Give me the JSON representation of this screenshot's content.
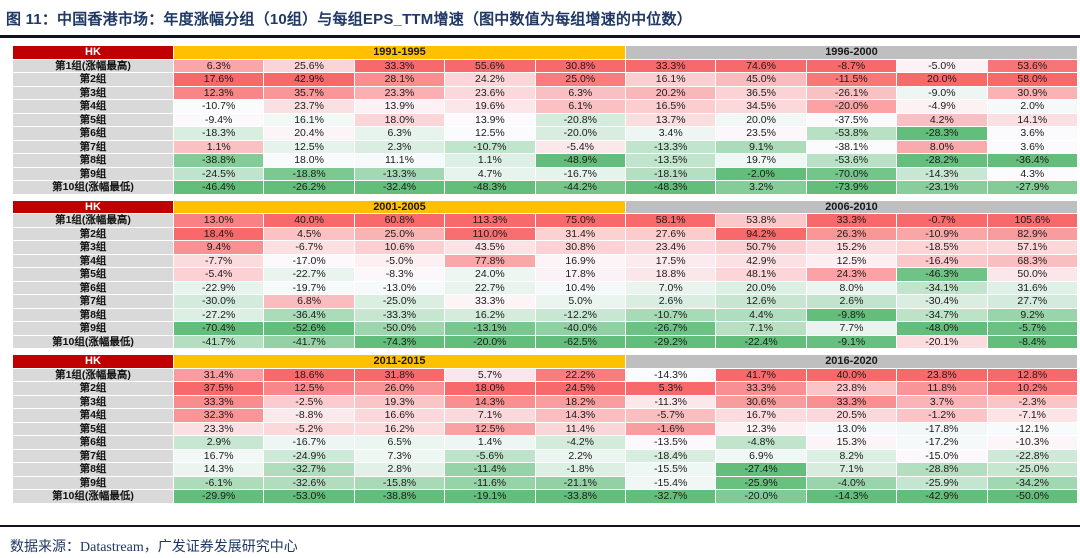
{
  "title": "图 11：中国香港市场：年度涨幅分组（10组）与每组EPS_TTM增速（图中数值为每组增速的中位数）",
  "footer": {
    "source_label": "数据来源：Datastream，广发证券发展研究中心"
  },
  "chart_data": {
    "type": "heatmap",
    "title": "中国香港市场：年度涨幅分组（10组）与每组EPS_TTM增速（中位数）",
    "value_unit": "%",
    "legend_note": "red = column max, white = column median, green = column min (per-column 3-color scale)",
    "color_scale": {
      "high": "#F8696B",
      "mid": "#FCFCFF",
      "low": "#63BE7B"
    },
    "row_labels": [
      "第1组(涨幅最高)",
      "第2组",
      "第3组",
      "第4组",
      "第5组",
      "第6组",
      "第7组",
      "第8组",
      "第9组",
      "第10组(涨幅最低)"
    ],
    "blocks": [
      {
        "market": "HK",
        "period_left": "1991-1995",
        "period_right": "1996-2000",
        "row_labels": [
          "第1组(涨幅最高)",
          "第2组",
          "第3组",
          "第4组",
          "第5组",
          "第6组",
          "第7组",
          "第8组",
          "第9组",
          "第10组(涨幅最低)"
        ],
        "rows": [
          [
            6.3,
            25.6,
            33.3,
            55.6,
            30.8,
            33.3,
            74.6,
            -8.7,
            -5.0,
            53.6
          ],
          [
            17.6,
            42.9,
            28.1,
            24.2,
            25.0,
            16.1,
            45.0,
            -11.5,
            20.0,
            58.0
          ],
          [
            12.3,
            35.7,
            23.3,
            23.6,
            6.3,
            20.2,
            36.5,
            -26.1,
            -9.0,
            30.9
          ],
          [
            -10.7,
            23.7,
            13.9,
            19.6,
            6.1,
            16.5,
            34.5,
            -20.0,
            -4.9,
            2.0
          ],
          [
            -9.4,
            16.1,
            18.0,
            13.9,
            -20.8,
            13.7,
            20.0,
            -37.5,
            4.2,
            14.1
          ],
          [
            -18.3,
            20.4,
            6.3,
            12.5,
            -20.0,
            3.4,
            23.5,
            -53.8,
            -28.3,
            3.6
          ],
          [
            1.1,
            12.5,
            2.3,
            -10.7,
            -5.4,
            -13.3,
            9.1,
            -38.1,
            8.0,
            3.6
          ],
          [
            -38.8,
            18.0,
            11.1,
            1.1,
            -48.9,
            -13.5,
            19.7,
            -53.6,
            -28.2,
            -36.4
          ],
          [
            -24.5,
            -18.8,
            -13.3,
            4.7,
            -16.7,
            -18.1,
            -2.0,
            -70.0,
            -14.3,
            4.3
          ],
          [
            -46.4,
            -26.2,
            -32.4,
            -48.3,
            -44.2,
            -48.3,
            3.2,
            -73.9,
            -23.1,
            -27.9
          ]
        ]
      },
      {
        "market": "HK",
        "period_left": "2001-2005",
        "period_right": "2006-2010",
        "row_labels": [
          "第1组(涨幅最高)",
          "第2组",
          "第3组",
          "第4组",
          "第5组",
          "第6组",
          "第7组",
          "第8组",
          "第9组",
          "第10组(涨幅最低)"
        ],
        "rows": [
          [
            13.0,
            40.0,
            60.8,
            113.3,
            75.0,
            58.1,
            53.8,
            33.3,
            -0.7,
            105.6
          ],
          [
            18.4,
            4.5,
            25.0,
            110.0,
            31.4,
            27.6,
            94.2,
            26.3,
            -10.9,
            82.9
          ],
          [
            9.4,
            -6.7,
            10.6,
            43.5,
            30.8,
            23.4,
            50.7,
            15.2,
            -18.5,
            57.1
          ],
          [
            -7.7,
            -17.0,
            -5.0,
            77.8,
            16.9,
            17.5,
            42.9,
            12.5,
            -16.4,
            68.3
          ],
          [
            -5.4,
            -22.7,
            -8.3,
            24.0,
            17.8,
            18.8,
            48.1,
            24.3,
            -46.3,
            50.0
          ],
          [
            -22.9,
            -19.7,
            -13.0,
            22.7,
            10.4,
            7.0,
            20.0,
            8.0,
            -34.1,
            31.6
          ],
          [
            -30.0,
            6.8,
            -25.0,
            33.3,
            5.0,
            2.6,
            12.6,
            2.6,
            -30.4,
            27.7
          ],
          [
            -27.2,
            -36.4,
            -33.3,
            16.2,
            -12.2,
            -10.7,
            4.4,
            -9.8,
            -34.7,
            9.2
          ],
          [
            -70.4,
            -52.6,
            -50.0,
            -13.1,
            -40.0,
            -26.7,
            7.1,
            7.7,
            -48.0,
            -5.7
          ],
          [
            -41.7,
            -41.7,
            -74.3,
            -20.0,
            -62.5,
            -29.2,
            -22.4,
            -9.1,
            -20.1,
            -8.4
          ]
        ]
      },
      {
        "market": "HK",
        "period_left": "2011-2015",
        "period_right": "2016-2020",
        "row_labels": [
          "第1组(涨幅最高)",
          "第2组",
          "第3组",
          "第4组",
          "第5组",
          "第6组",
          "第7组",
          "第8组",
          "第9组",
          "第10组(涨幅最低)"
        ],
        "rows": [
          [
            31.4,
            18.6,
            31.8,
            5.7,
            22.2,
            -14.3,
            41.7,
            40.0,
            23.8,
            12.8
          ],
          [
            37.5,
            12.5,
            26.0,
            18.0,
            24.5,
            5.3,
            33.3,
            23.8,
            11.8,
            10.2
          ],
          [
            33.3,
            -2.5,
            19.3,
            14.3,
            18.2,
            -11.3,
            30.6,
            33.3,
            3.7,
            -2.3
          ],
          [
            32.3,
            -8.8,
            16.6,
            7.1,
            14.3,
            -5.7,
            16.7,
            20.5,
            -1.2,
            -7.1
          ],
          [
            23.3,
            -5.2,
            16.2,
            12.5,
            11.4,
            -1.6,
            12.3,
            13.0,
            -17.8,
            -12.1
          ],
          [
            2.9,
            -16.7,
            6.5,
            1.4,
            -4.2,
            -13.5,
            -4.8,
            15.3,
            -17.2,
            -10.3
          ],
          [
            16.7,
            -24.9,
            7.3,
            -5.6,
            2.2,
            -18.4,
            6.9,
            8.2,
            -15.0,
            -22.8
          ],
          [
            14.3,
            -32.7,
            2.8,
            -11.4,
            -1.8,
            -15.5,
            -27.4,
            7.1,
            -28.8,
            -25.0
          ],
          [
            -6.1,
            -32.6,
            -15.8,
            -11.6,
            -21.1,
            -15.4,
            -25.9,
            -4.0,
            -25.9,
            -34.2
          ],
          [
            -29.9,
            -53.0,
            -38.8,
            -19.1,
            -33.8,
            -32.7,
            -20.0,
            -14.3,
            -42.9,
            -50.0
          ]
        ]
      }
    ]
  }
}
